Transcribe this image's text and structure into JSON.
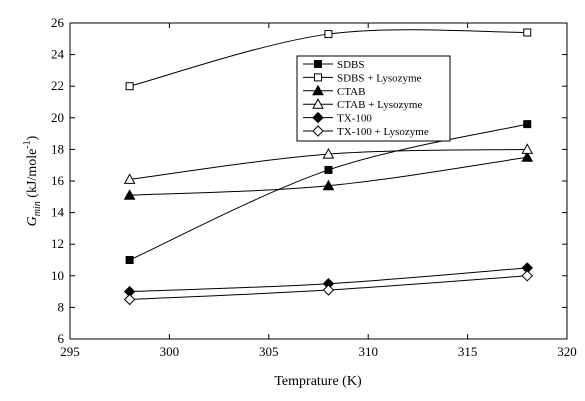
{
  "chart_data": {
    "type": "line",
    "xlabel": "Temprature (K)",
    "ylabel_main": "G",
    "ylabel_sub": "min",
    "ylabel_unit": " (kJ/mole",
    "ylabel_sup": "-1",
    "ylabel_close": ")",
    "xlim": [
      295,
      320
    ],
    "ylim": [
      6,
      26
    ],
    "xticks": [
      295,
      300,
      305,
      310,
      315,
      320
    ],
    "yticks": [
      6,
      8,
      10,
      12,
      14,
      16,
      18,
      20,
      22,
      24,
      26
    ],
    "grid": false,
    "legend_position": "upper-right",
    "x": [
      298,
      308,
      318
    ],
    "series": [
      {
        "name": "SDBS",
        "marker": "square-filled",
        "values": [
          11.0,
          16.7,
          19.6
        ]
      },
      {
        "name": "SDBS + Lysozyme",
        "marker": "square-open",
        "values": [
          22.0,
          25.3,
          25.4
        ]
      },
      {
        "name": "CTAB",
        "marker": "triangle-filled",
        "values": [
          15.1,
          15.7,
          17.5
        ]
      },
      {
        "name": "CTAB + Lysozyme",
        "marker": "triangle-open",
        "values": [
          16.1,
          17.7,
          18.0
        ]
      },
      {
        "name": "TX-100",
        "marker": "diamond-filled",
        "values": [
          9.0,
          9.5,
          10.5
        ]
      },
      {
        "name": "TX-100 + Lysozyme",
        "marker": "diamond-open",
        "values": [
          8.5,
          9.1,
          10.0
        ]
      }
    ]
  }
}
